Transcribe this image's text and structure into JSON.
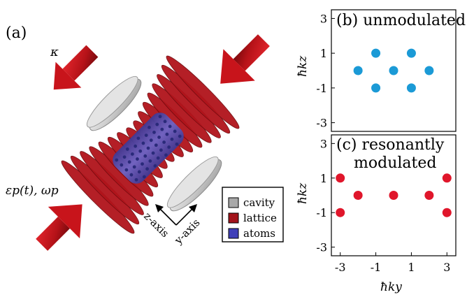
{
  "panel_a": {
    "label": "(a)",
    "kappa_label": "κ",
    "pump_label": "εp(t), ωp",
    "z_axis_label": "z-axis",
    "y_axis_label": "y-axis",
    "legend": [
      {
        "label": "cavity",
        "color": "#a8a8a8"
      },
      {
        "label": "lattice",
        "color": "#a3131a"
      },
      {
        "label": "atoms",
        "color": "#4040b8"
      }
    ],
    "colors": {
      "arrow": "#d3161d",
      "cavity": "#c8c8c8",
      "lattice": "#b0141b",
      "atoms": "#4a4ab0"
    }
  },
  "chart_data": [
    {
      "type": "scatter",
      "title": "(b) unmodulated",
      "ylabel": "ħkz",
      "xlabel": "",
      "xlim": [
        -3.5,
        3.5
      ],
      "ylim": [
        -3.5,
        3.5
      ],
      "yticks": [
        "3",
        "1",
        "-1",
        "-3"
      ],
      "xticks": [],
      "color": "#1b9ad6",
      "points": [
        [
          -1,
          1
        ],
        [
          1,
          1
        ],
        [
          -2,
          0
        ],
        [
          0,
          0
        ],
        [
          2,
          0
        ],
        [
          -1,
          -1
        ],
        [
          1,
          -1
        ]
      ]
    },
    {
      "type": "scatter",
      "title_line1": "(c) resonantly",
      "title_line2": "modulated",
      "ylabel": "ħkz",
      "xlabel": "ħky",
      "xlim": [
        -3.5,
        3.5
      ],
      "ylim": [
        -3.5,
        3.5
      ],
      "yticks": [
        "3",
        "1",
        "-1",
        "-3"
      ],
      "xticks": [
        "-3",
        "-1",
        "1",
        "3"
      ],
      "color": "#e0162b",
      "points": [
        [
          -3,
          1
        ],
        [
          3,
          1
        ],
        [
          -2,
          0
        ],
        [
          0,
          0
        ],
        [
          2,
          0
        ],
        [
          -3,
          -1
        ],
        [
          3,
          -1
        ]
      ]
    }
  ]
}
